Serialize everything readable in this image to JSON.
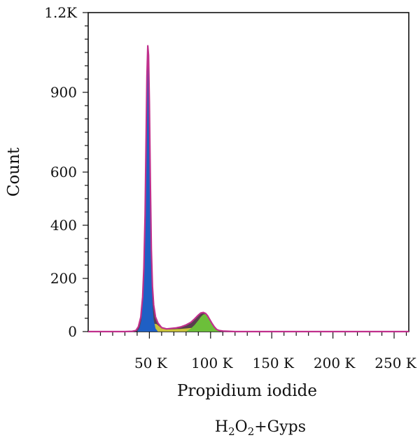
{
  "chart_data": {
    "type": "area",
    "title": "",
    "xlabel": "Propidium iodide",
    "ylabel": "Count",
    "caption": {
      "main": "H",
      "sub1": "2",
      "mid": "O",
      "sub2": "2",
      "rest": "+Gyps"
    },
    "xlim": [
      0,
      262000
    ],
    "ylim": [
      0,
      1200
    ],
    "x_ticks": [
      {
        "value": 50000,
        "label": "50 K"
      },
      {
        "value": 100000,
        "label": "100 K"
      },
      {
        "value": 150000,
        "label": "150 K"
      },
      {
        "value": 200000,
        "label": "200 K"
      },
      {
        "value": 250000,
        "label": "250 K"
      }
    ],
    "y_ticks": [
      {
        "value": 0,
        "label": "0"
      },
      {
        "value": 200,
        "label": "200"
      },
      {
        "value": 400,
        "label": "400"
      },
      {
        "value": 600,
        "label": "600"
      },
      {
        "value": 900,
        "label": "900"
      },
      {
        "value": 1200,
        "label": "1.2K"
      }
    ],
    "colors": {
      "g1": "#1f5fc4",
      "s_phase": "#c9c23a",
      "g2": "#6cbf3a",
      "outline": "#c0308c",
      "outline_dark": "#3a1e2e"
    },
    "series": [
      {
        "component": "total",
        "x": [
          0,
          10000,
          20000,
          30000,
          36000,
          39000,
          41000,
          43000,
          44500,
          45500,
          46500,
          47300,
          48000,
          48700,
          49300,
          50000,
          50800,
          51600,
          52500,
          53500,
          55000,
          57000,
          60000,
          64000,
          68000,
          72000,
          76000,
          80000,
          84000,
          87000,
          90000,
          92000,
          94000,
          96000,
          97500,
          99000,
          101000,
          103000,
          105000,
          107000,
          110000,
          115000,
          120000,
          130000,
          150000,
          200000,
          250000,
          262000
        ],
        "values": [
          0,
          0,
          0,
          0,
          1,
          4,
          18,
          55,
          130,
          240,
          440,
          720,
          960,
          1075,
          1040,
          860,
          560,
          310,
          170,
          100,
          55,
          32,
          15,
          10,
          12,
          14,
          18,
          25,
          35,
          48,
          62,
          70,
          72,
          68,
          60,
          48,
          32,
          18,
          8,
          4,
          2,
          1,
          0,
          0,
          0,
          0,
          0,
          0
        ]
      },
      {
        "component": "G1",
        "x": [
          40000,
          42000,
          43500,
          44500,
          45500,
          46500,
          47300,
          48000,
          48700,
          49300,
          50000,
          50800,
          51600,
          52500,
          53500,
          55000,
          57000
        ],
        "values": [
          0,
          15,
          45,
          110,
          215,
          420,
          700,
          940,
          1050,
          1010,
          820,
          500,
          250,
          110,
          45,
          12,
          0
        ]
      },
      {
        "component": "S",
        "x": [
          44000,
          47000,
          50000,
          53000,
          56000,
          60000,
          65000,
          70000,
          75000,
          80000,
          85000,
          90000,
          95000,
          100000,
          103000
        ],
        "values": [
          0,
          6,
          18,
          30,
          28,
          12,
          8,
          9,
          10,
          12,
          14,
          12,
          8,
          4,
          0
        ]
      },
      {
        "component": "G2",
        "x": [
          80000,
          84000,
          87000,
          90000,
          92000,
          94000,
          96000,
          97500,
          99000,
          101000,
          103000,
          105000,
          108000
        ],
        "values": [
          0,
          12,
          25,
          42,
          55,
          64,
          66,
          60,
          46,
          28,
          14,
          5,
          0
        ]
      }
    ]
  }
}
